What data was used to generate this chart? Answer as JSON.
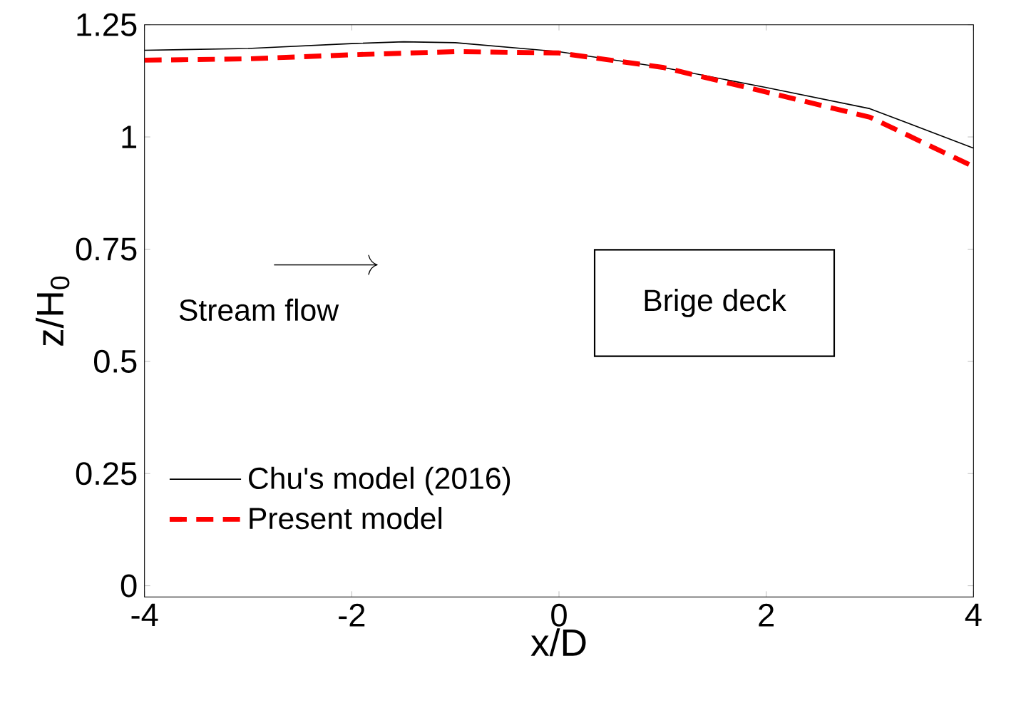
{
  "chart_data": {
    "type": "line",
    "xlabel": "x/D",
    "ylabel": "z/H$_{0}$",
    "xlim": [
      -4,
      4
    ],
    "ylim": [
      -0.025,
      1.25
    ],
    "xticks": [
      -4,
      -2,
      0,
      2,
      4
    ],
    "yticks": [
      0,
      0.25,
      {
        "value": 0.5,
        "label": "0.5"
      },
      0.75,
      {
        "value": 1,
        "label": "1"
      },
      1.25
    ],
    "grid": false,
    "legend": "bottom left",
    "annotations": [
      "Stream flow",
      "Brige deck"
    ],
    "series": [
      {
        "name": "Chu's model (2016)",
        "color": "#000000",
        "line_style": "solid",
        "x": [
          -4,
          -3,
          -2,
          -1.5,
          -1,
          0,
          1,
          2,
          3,
          4
        ],
        "values": [
          1.193,
          1.197,
          1.208,
          1.212,
          1.21,
          1.19,
          1.155,
          1.11,
          1.063,
          0.975
        ]
      },
      {
        "name": "Present model",
        "color": "#ff0000",
        "line_style": "dashed",
        "x": [
          -4,
          -3,
          -2,
          -1,
          0,
          1,
          2,
          3,
          4
        ],
        "values": [
          1.171,
          1.174,
          1.183,
          1.19,
          1.187,
          1.155,
          1.1,
          1.044,
          0.934
        ]
      }
    ]
  }
}
